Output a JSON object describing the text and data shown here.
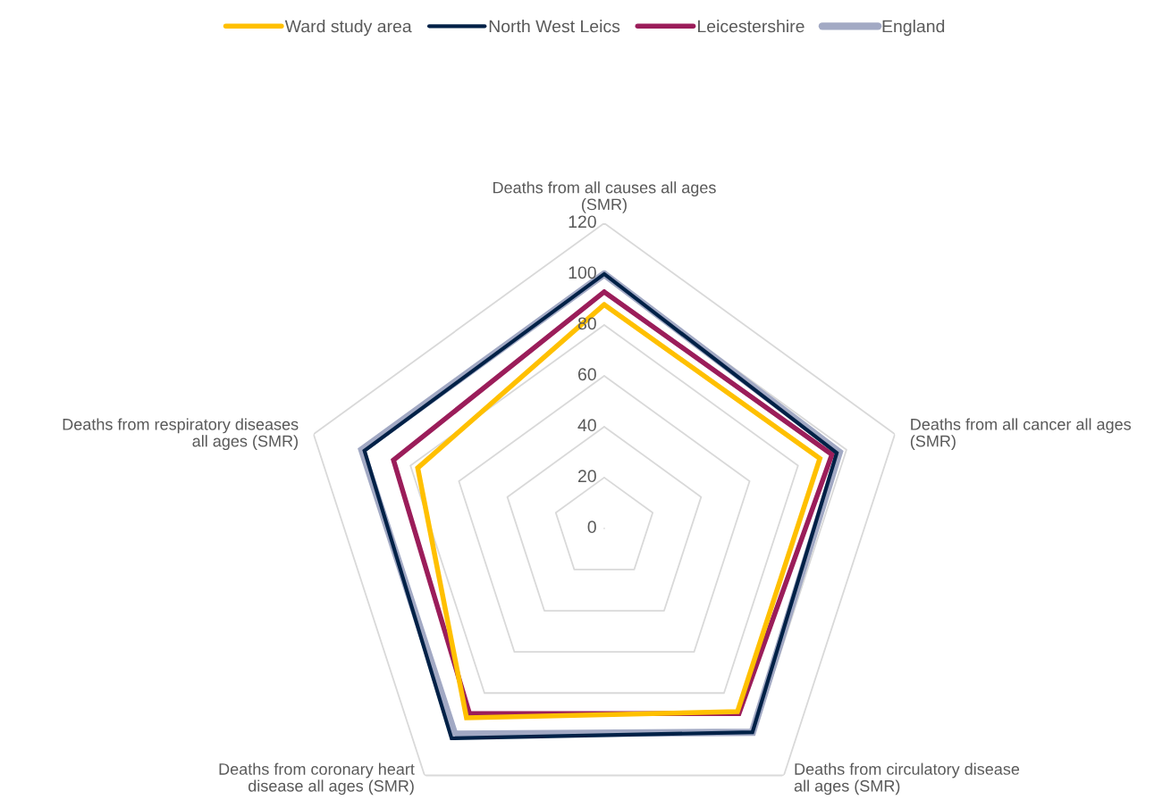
{
  "chart_data": {
    "type": "radar",
    "categories": [
      "Deaths from all causes all ages\n(SMR)",
      "Deaths from all cancer all ages\n(SMR)",
      "Deaths from circulatory disease\nall ages (SMR)",
      "Deaths from coronary heart\ndisease all ages (SMR)",
      "Deaths from respiratory diseases\nall ages (SMR)"
    ],
    "series": [
      {
        "name": "Ward study area",
        "color": "#ffc000",
        "values": [
          88,
          89,
          89,
          92,
          77
        ]
      },
      {
        "name": "North West Leics",
        "color": "#002147",
        "values": [
          100,
          96,
          99,
          102,
          99
        ]
      },
      {
        "name": "Leicestershire",
        "color": "#9b1d5a",
        "values": [
          93,
          94,
          90,
          90,
          87
        ]
      },
      {
        "name": "England",
        "color": "#a2a9c4",
        "values": [
          100,
          97,
          99,
          100,
          100
        ]
      }
    ],
    "ylim": [
      0,
      120
    ],
    "yticks": [
      0,
      20,
      40,
      60,
      80,
      100,
      120
    ],
    "grid": true,
    "legend": "top"
  }
}
